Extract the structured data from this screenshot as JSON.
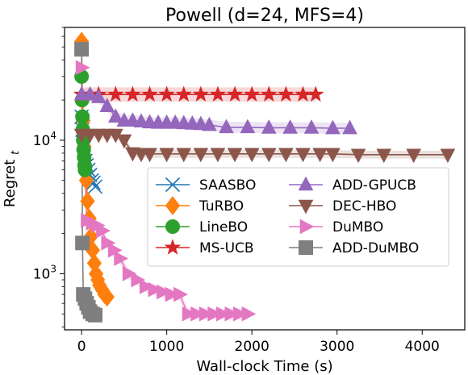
{
  "chart_data": {
    "type": "line",
    "title": "Powell (d=24, MFS=4)",
    "xlabel": "Wall-clock Time (s)",
    "ylabel": "Regret r_t",
    "ylabel_main": "Regret ",
    "ylabel_sub": "t",
    "yscale": "log",
    "xlim": [
      -200,
      4500
    ],
    "ylim": [
      380,
      70000
    ],
    "x_ticks": [
      0,
      1000,
      2000,
      3000,
      4000
    ],
    "x_tick_labels": [
      "0",
      "1000",
      "2000",
      "3000",
      "4000"
    ],
    "y_ticks": [
      1000,
      10000
    ],
    "y_tick_label_base": "10",
    "y_tick_label_exps": [
      "3",
      "4"
    ],
    "grid": false,
    "legend_position": "center-right",
    "series": [
      {
        "name": "SAASBO",
        "color": "#1f77b4",
        "marker": "x",
        "x": [
          0,
          10,
          20,
          30,
          45,
          60,
          80,
          100,
          120,
          140,
          160
        ],
        "y": [
          15000,
          12000,
          9500,
          8000,
          7000,
          6500,
          6000,
          5500,
          5000,
          4800,
          4500
        ],
        "band": 0.08
      },
      {
        "name": "TuRBO",
        "color": "#ff7f0e",
        "marker": "diamond",
        "x": [
          0,
          10,
          20,
          30,
          40,
          55,
          70,
          90,
          110,
          130,
          150,
          170,
          190,
          210,
          240,
          270,
          300
        ],
        "y": [
          55000,
          20000,
          14000,
          9000,
          6500,
          5000,
          3500,
          2600,
          1900,
          1500,
          1200,
          1000,
          900,
          820,
          760,
          700,
          670
        ],
        "band": 0.1
      },
      {
        "name": "LineBO",
        "color": "#2ca02c",
        "marker": "circle",
        "x": [
          0,
          5,
          10,
          15,
          20,
          25,
          30,
          35,
          40
        ],
        "y": [
          30000,
          20000,
          15000,
          12000,
          10000,
          8500,
          7500,
          6500,
          6000
        ],
        "band": 0.1
      },
      {
        "name": "MS-UCB",
        "color": "#d62728",
        "marker": "star",
        "x": [
          0,
          200,
          400,
          600,
          800,
          1000,
          1200,
          1400,
          1600,
          1800,
          2000,
          2200,
          2400,
          2600,
          2750
        ],
        "y": [
          22000,
          22000,
          22000,
          22000,
          22000,
          22000,
          22000,
          22000,
          22000,
          22000,
          22000,
          22000,
          22000,
          22000,
          22000
        ],
        "band": 0.13
      },
      {
        "name": "ADD-GPUCB",
        "color": "#9467bd",
        "marker": "triangle-up",
        "x": [
          0,
          100,
          200,
          300,
          400,
          500,
          600,
          700,
          800,
          900,
          1000,
          1100,
          1200,
          1300,
          1400,
          1500,
          1700,
          1950,
          2200,
          2450,
          2700,
          2950,
          3150
        ],
        "y": [
          22000,
          22000,
          21000,
          18000,
          15000,
          14000,
          14000,
          13800,
          13600,
          13500,
          13500,
          13500,
          13400,
          13300,
          13200,
          13000,
          12500,
          12500,
          12400,
          12400,
          12400,
          12300,
          12300
        ],
        "band": 0.1
      },
      {
        "name": "DEC-HBO",
        "color": "#8c564b",
        "marker": "triangle-down",
        "x": [
          0,
          100,
          200,
          300,
          400,
          500,
          600,
          700,
          800,
          1000,
          1200,
          1400,
          1600,
          1800,
          2000,
          2200,
          2400,
          2600,
          2800,
          2950,
          3250,
          3550,
          3900,
          4300
        ],
        "y": [
          11000,
          11000,
          11000,
          11000,
          11000,
          10000,
          8000,
          7900,
          7900,
          7900,
          7900,
          7900,
          7900,
          7900,
          7900,
          7900,
          7900,
          7900,
          7900,
          7900,
          7800,
          7800,
          7800,
          7800
        ],
        "band": 0.07
      },
      {
        "name": "DuMBO",
        "color": "#e377c2",
        "marker": "triangle-right",
        "x": [
          0,
          60,
          120,
          180,
          240,
          300,
          380,
          450,
          550,
          650,
          750,
          850,
          950,
          1050,
          1150,
          1250,
          1350,
          1450,
          1550,
          1650,
          1750,
          1850,
          1950
        ],
        "y": [
          35000,
          2500,
          2400,
          2300,
          2100,
          1700,
          1500,
          1300,
          1000,
          900,
          800,
          760,
          730,
          700,
          700,
          500,
          500,
          500,
          500,
          500,
          500,
          500,
          500
        ],
        "band": 0.1
      },
      {
        "name": "ADD-DuMBO",
        "color": "#7f7f7f",
        "marker": "square",
        "x": [
          0,
          10,
          20,
          40,
          60,
          80,
          100,
          130,
          160
        ],
        "y": [
          48000,
          1700,
          700,
          650,
          600,
          560,
          520,
          500,
          490
        ],
        "band": 0.06
      }
    ]
  }
}
